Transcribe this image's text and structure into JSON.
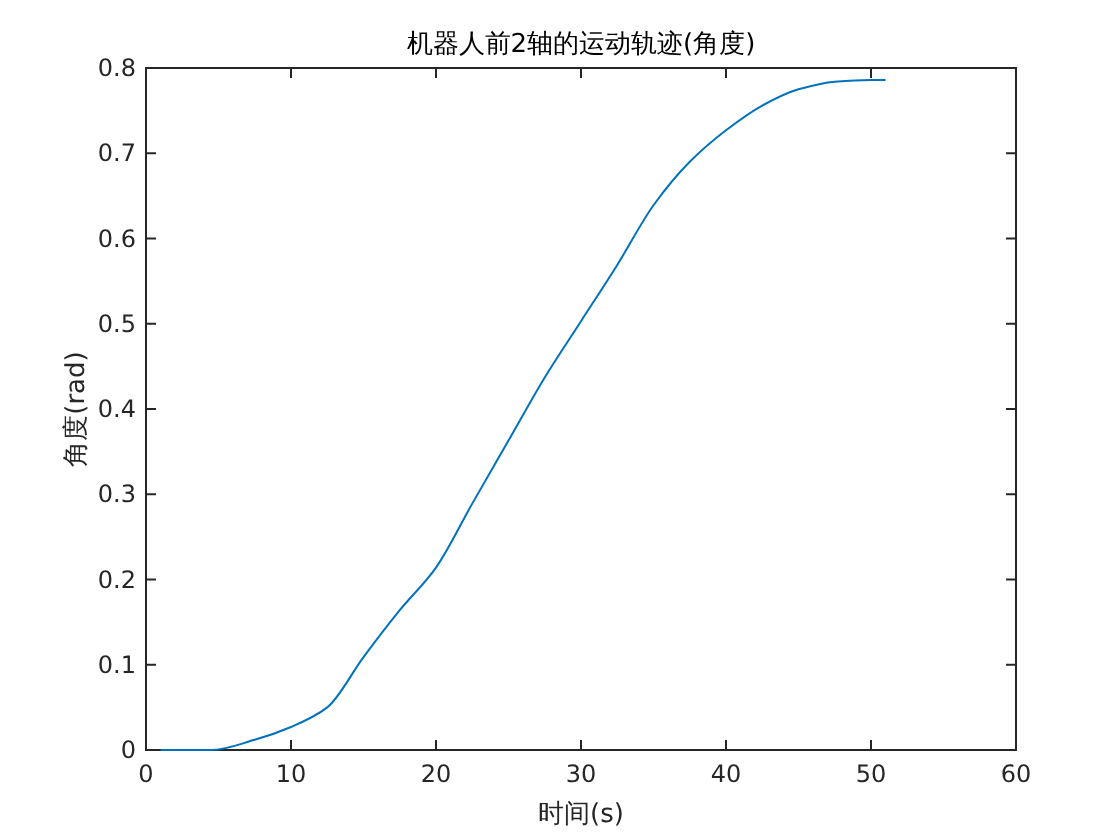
{
  "chart_data": {
    "type": "line",
    "title": "机器人前2轴的运动轨迹(角度)",
    "xlabel": "时间(s)",
    "ylabel": "角度(rad)",
    "x": [
      1,
      4.5,
      7.5,
      10,
      12.5,
      15,
      17.5,
      20,
      22.5,
      25,
      27.5,
      30,
      32.5,
      35,
      37.5,
      40,
      42.5,
      45,
      47.5,
      50,
      51
    ],
    "series": [
      {
        "color": "#0072bd",
        "values": [
          0,
          0,
          0.012,
          0.027,
          0.05,
          0.109,
          0.164,
          0.214,
          0.289,
          0.363,
          0.437,
          0.503,
          0.569,
          0.639,
          0.69,
          0.727,
          0.756,
          0.775,
          0.784,
          0.786,
          0.786
        ]
      }
    ],
    "xlim": [
      0,
      60
    ],
    "xticks": [
      0,
      10,
      20,
      30,
      40,
      50,
      60
    ],
    "ylim": [
      0,
      0.8
    ],
    "yticks": [
      0,
      0.1,
      0.2,
      0.3,
      0.4,
      0.5,
      0.6,
      0.7,
      0.8
    ],
    "grid": false,
    "marker": "none",
    "line_style": "solid"
  }
}
